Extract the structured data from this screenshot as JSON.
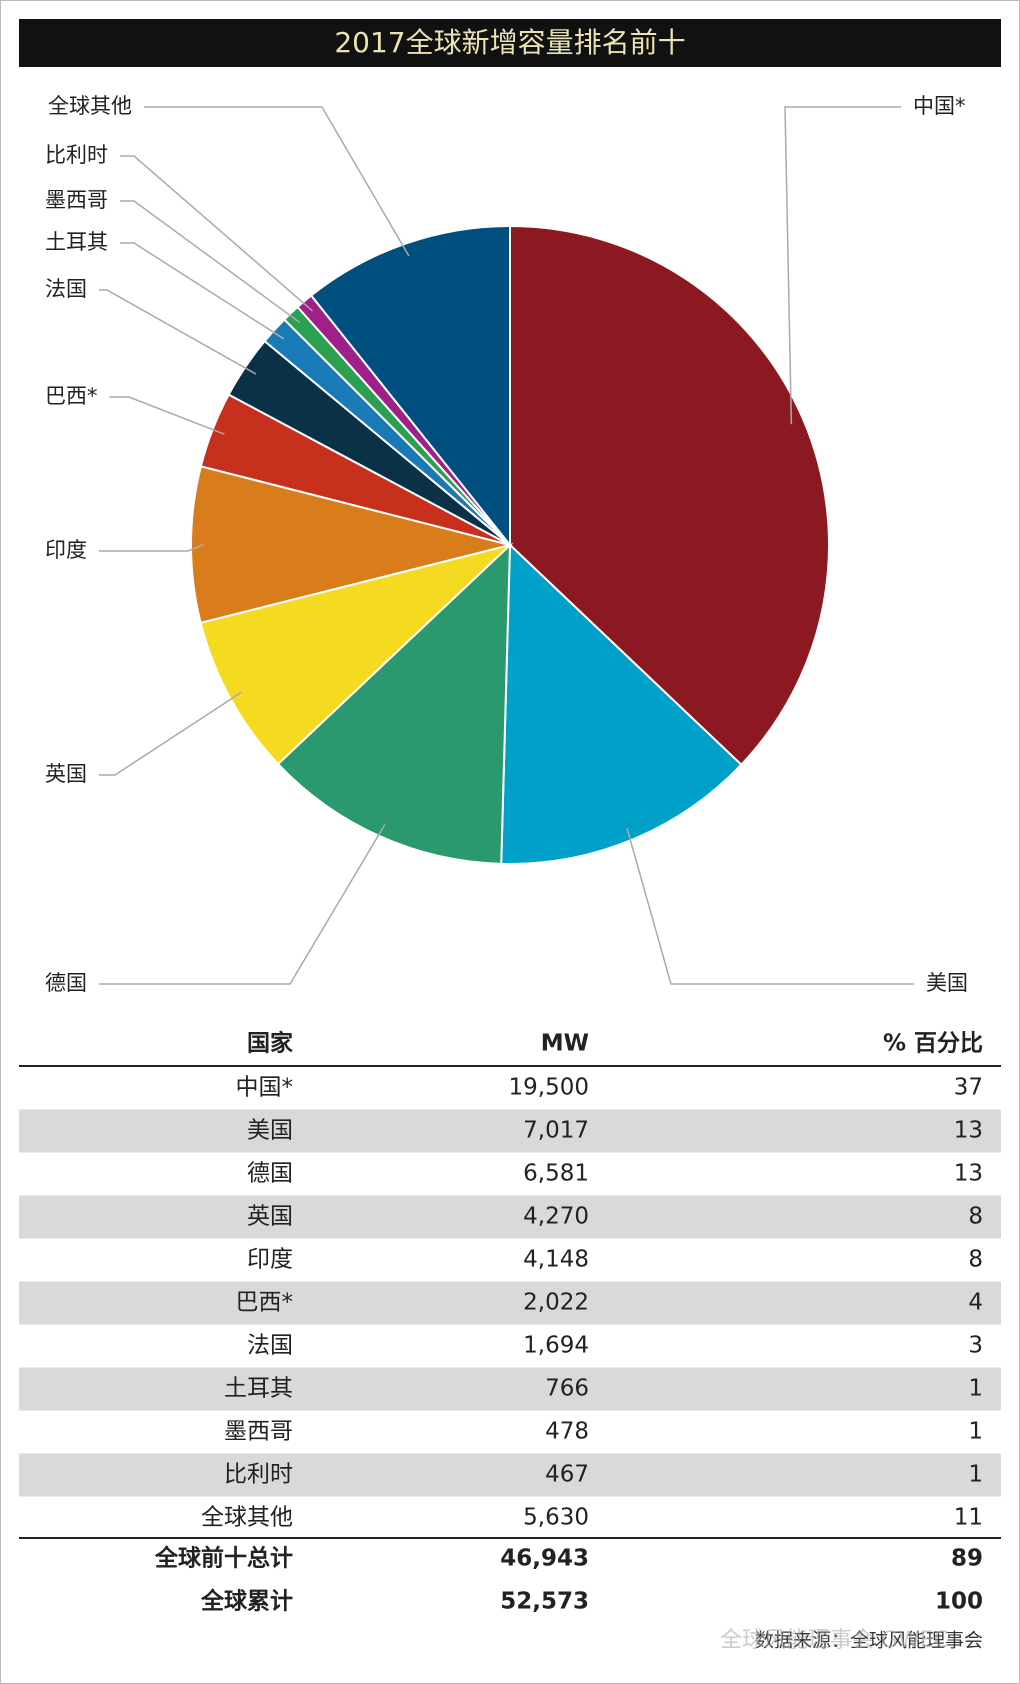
{
  "chart_data": {
    "type": "pie",
    "title": "2017全球新增容量排名前十",
    "categories": [
      "中国*",
      "美国",
      "德国",
      "英国",
      "印度",
      "巴西*",
      "法国",
      "土耳其",
      "墨西哥",
      "比利时",
      "全球其他"
    ],
    "values": [
      19500,
      7017,
      6581,
      4270,
      4148,
      2022,
      1694,
      766,
      478,
      467,
      5630
    ],
    "value_labels": [
      "19,500",
      "7,017",
      "6,581",
      "4,270",
      "4,148",
      "2,022",
      "1,694",
      "766",
      "478",
      "467",
      "5,630"
    ],
    "percents": [
      37,
      13,
      13,
      8,
      8,
      4,
      3,
      1,
      1,
      1,
      11
    ],
    "colors": [
      "#8c1822",
      "#00a0c8",
      "#2a9a6e",
      "#f5da22",
      "#d87c1c",
      "#c8301e",
      "#0b3147",
      "#1a7ab8",
      "#2aa050",
      "#a0208a",
      "#004f7f"
    ]
  },
  "table": {
    "headers": [
      "国家",
      "MW",
      "% 百分比"
    ],
    "totals": [
      {
        "label": "全球前十总计",
        "value": 46943,
        "value_label": "46,943",
        "percent": 89
      },
      {
        "label": "全球累计",
        "value": 52573,
        "value_label": "52,573",
        "percent": 100
      }
    ]
  },
  "source": "数据来源：全球风能理事会",
  "watermark": "全球风能理事会 GWEC"
}
